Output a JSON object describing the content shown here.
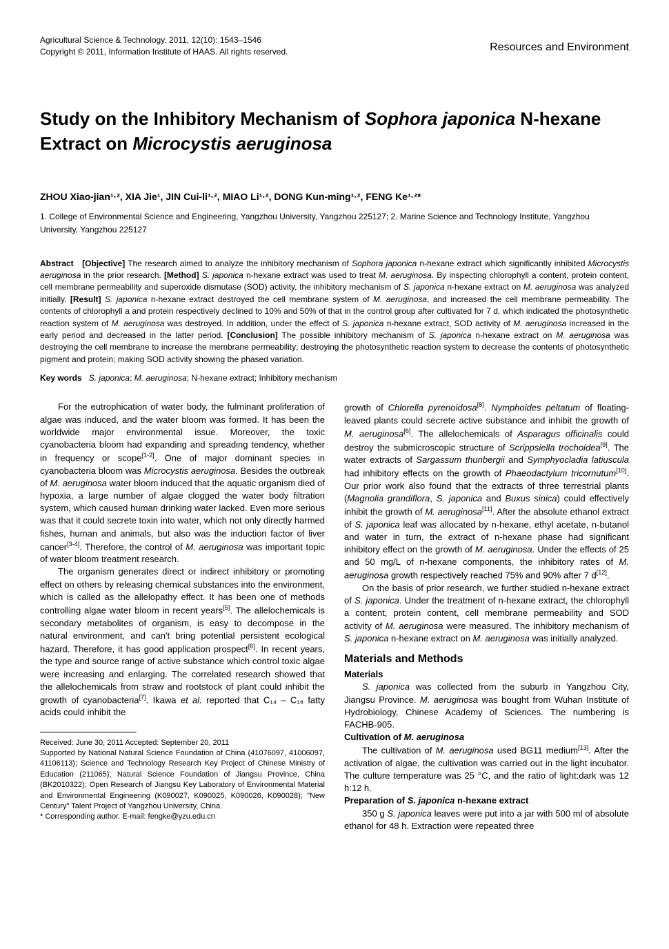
{
  "header": {
    "journal_line1": "Agricultural Science & Technology, 2011, 12(10): 1543–1546",
    "journal_line2": "Copyright © 2011, Information Institute of HAAS. All rights reserved.",
    "section": "Resources and Environment"
  },
  "title": {
    "part1": "Study on the Inhibitory Mechanism of ",
    "italic1": "Sophora japonica",
    "part2": " N-hexane Extract on ",
    "italic2": "Microcystis aeruginosa"
  },
  "authors": "ZHOU Xiao-jian¹·², XIA Jie¹, JIN Cui-li¹·², MIAO Li¹·², DONG Kun-ming¹·², FENG Ke¹·²*",
  "affiliations": "1. College of Environmental Science and Engineering, Yangzhou University, Yangzhou 225127; 2. Marine Science and Technology Institute, Yangzhou University, Yangzhou 225127",
  "abstract": {
    "label": "Abstract",
    "objective_label": "[Objective]",
    "objective": " The research aimed to analyze the inhibitory mechanism of ",
    "obj_i1": "Sophora japonica",
    "obj_2": " n-hexane extract which significantly inhibited ",
    "obj_i2": "Microcystis aeruginosa",
    "obj_3": " in the prior research. ",
    "method_label": "[Method]",
    "method_1": " ",
    "method_i1": "S. japonica",
    "method_2": " n-hexane extract was used to treat ",
    "method_i2": "M. aeruginosa",
    "method_3": ". By inspecting chlorophyll a content, protein content, cell membrane permeability and superoxide dismutase (SOD) activity, the inhibitory mechanism of ",
    "method_i3": "S. japonica",
    "method_4": " n-hexane extract on ",
    "method_i4": "M. aeruginosa",
    "method_5": " was analyzed initially. ",
    "result_label": "[Result]",
    "result_1": " ",
    "result_i1": "S. japonica",
    "result_2": " n-hexane extract destroyed the cell membrane system of ",
    "result_i2": "M. aeruginosa",
    "result_3": ", and increased the cell membrane permeability. The contents of chlorophyll a and protein respectively declined to 10% and 50% of that in the control group after cultivated for 7 d, which indicated the photosynthetic reaction system of ",
    "result_i3": "M. aeruginosa",
    "result_4": " was destroyed. In addition, under the effect of ",
    "result_i4": "S. japonica",
    "result_5": " n-hexane extract, SOD activity of ",
    "result_i5": "M. aeruginosa",
    "result_6": " increased in the early period and decreased in the latter period. ",
    "conclusion_label": "[Conclusion]",
    "conclusion_1": " The possible inhibitory mechanism of ",
    "conclusion_i1": "S. japonica",
    "conclusion_2": " n-hexane extract on ",
    "conclusion_i2": "M. aeruginosa",
    "conclusion_3": " was destroying the cell membrane to increase the membrane permeability; destroying the photosynthetic reaction system to decrease the contents of photosynthetic pigment and protein; making SOD activity showing the phased variation."
  },
  "keywords": {
    "label": "Key words",
    "content": "S. japonica; M. aeruginosa; N-hexane extract; Inhibitory mechanism"
  },
  "body": {
    "left": {
      "p1_1": "For the eutrophication of water body, the fulminant proliferation of algae was induced, and the water bloom was formed. It has been the worldwide major environmental issue. Moreover, the toxic cyanobacteria bloom had expanding and spreading tendency, whether in frequency or scope",
      "p1_sup1": "[1-2]",
      "p1_2": ". One of major dominant species in cyanobacteria bloom was ",
      "p1_i1": "Microcystis aeruginosa",
      "p1_3": ". Besides the outbreak of ",
      "p1_i2": "M. aeruginosa",
      "p1_4": " water bloom induced that the aquatic organism died of hypoxia, a large number of algae clogged the water body filtration system, which caused human drinking water lacked. Even more serious was that it could secrete toxin into water, which not only directly harmed fishes, human and animals, but also was the induction factor of liver cancer",
      "p1_sup2": "[3-4]",
      "p1_5": ". Therefore, the control of ",
      "p1_i3": "M. aeruginosa",
      "p1_6": " was important topic of water bloom treatment research.",
      "p2_1": "The organism generates direct or indirect inhibitory or promoting effect on others by releasing chemical substances into the environment, which is called as the allelopathy effect. It has been one of methods controlling algae water bloom in recent years",
      "p2_sup1": "[5]",
      "p2_2": ". The allelochemicals is secondary metabolites of organism, is easy to decompose in the natural environment, and can't bring potential persistent ecological hazard. Therefore, it has good application prospect",
      "p2_sup2": "[6]",
      "p2_3": ". In recent years, the type and source range of active substance which control toxic algae were increasing and enlarging. The correlated research showed that the allelochemicals from straw and rootstock of plant could inhibit the growth of cyanobacteria",
      "p2_sup3": "[7]",
      "p2_4": ". Ikawa ",
      "p2_i1": "et al.",
      "p2_5": " reported that C₁₄ – C₁₈ fatty acids could inhibit the"
    },
    "right": {
      "p1_1": "growth of ",
      "p1_i1": "Chlorella pyrenoidosa",
      "p1_sup1": "[8]",
      "p1_2": ". ",
      "p1_i2": "Nymphoides peltatum",
      "p1_3": " of floating-leaved plants could secrete active substance and inhibit the growth of ",
      "p1_i3": "M. aeruginosa",
      "p1_sup2": "[6]",
      "p1_4": ". The allelochemicals of ",
      "p1_i4": "Asparagus officinalis",
      "p1_5": " could destroy the submicroscopic structure of ",
      "p1_i5": "Scrippsiella trochoidea",
      "p1_sup3": "[9]",
      "p1_6": ". The water extracts of ",
      "p1_i6": "Sargassum thunbergii",
      "p1_7": " and ",
      "p1_i7": "Symphyocladia latiuscula",
      "p1_8": " had inhibitory effects on the growth of ",
      "p1_i8": "Phaeodactylum tricornutum",
      "p1_sup4": "[10]",
      "p1_9": ". Our prior work also found that the extracts of three terrestrial plants (",
      "p1_i9": "Magnolia grandiflora",
      "p1_10": ", ",
      "p1_i10": "S. japonica",
      "p1_11": " and ",
      "p1_i11": "Buxus sinica",
      "p1_12": ") could effectively inhibit the growth of ",
      "p1_i12": "M. aeruginosa",
      "p1_sup5": "[11]",
      "p1_13": ". After the absolute ethanol extract of ",
      "p1_i13": "S. japonica",
      "p1_14": " leaf was allocated by n-hexane, ethyl acetate, n-butanol and water in turn, the extract of n-hexane phase had significant inhibitory effect on the growth of ",
      "p1_i14": "M. aeruginosa",
      "p1_15": ". Under the effects of 25 and 50 mg/L of n-hexane components, the inhibitory rates of ",
      "p1_i15": "M. aeruginosa",
      "p1_16": " growth respectively reached 75% and 90% after 7 d",
      "p1_sup6": "[12]",
      "p1_17": ".",
      "p2_1": "On the basis of prior research, we further studied n-hexane extract of ",
      "p2_i1": "S. japonica",
      "p2_2": ". Under the treatment of n-hexane extract, the chlorophyll a content, protein content, cell membrane permeability and SOD activity of ",
      "p2_i2": "M. aeruginosa",
      "p2_3": " were measured. The inhibitory mechanism of ",
      "p2_i3": "S. japonica",
      "p2_4": " n-hexane extract on ",
      "p2_i4": "M. aeruginosa",
      "p2_5": " was initially analyzed."
    },
    "methods_heading": "Materials and Methods",
    "materials_heading": "Materials",
    "materials_p_i1": "S. japonica",
    "materials_p_1": " was collected from the suburb in Yangzhou City, Jiangsu Province. ",
    "materials_p_i2": "M. aeruginosa",
    "materials_p_2": " was bought from Wuhan Institute of Hydrobiology, Chinese Academy of Sciences. The numbering is FACHB-905.",
    "cultivation_heading_1": "Cultivation of ",
    "cultivation_heading_i": "M. aeruginosa",
    "cultivation_p_1": "The cultivation of ",
    "cultivation_p_i1": "M. aeruginosa",
    "cultivation_p_2": " used BG11 medium",
    "cultivation_p_sup": "[13]",
    "cultivation_p_3": ". After the activation of algae, the cultivation was carried out in the light incubator. The culture temperature was 25 °C, and the ratio of light:dark was 12 h:12 h.",
    "prep_heading_1": "Preparation of ",
    "prep_heading_i": "S. japonica",
    "prep_heading_2": " n-hexane extract",
    "prep_p_1": "350 g ",
    "prep_p_i1": "S. japonica",
    "prep_p_2": " leaves were put into a jar with 500 ml of absolute ethanol for 48 h. Extraction were repeated three"
  },
  "footnote": {
    "received": "Received: June 30, 2011        Accepted: September 20, 2011",
    "funding": "Supported by National Natural Science Foundation of China (41076097, 41006097, 41106113); Science and Technology Research Key Project of Chinese Ministry of Education (211065); Natural Science Foundation of Jiangsu Province, China (BK2010322); Open Research of Jiangsu Key Laboratory of Environmental Material and Environmental Engineering (K090027, K090025, K090026, K090028); \"New Century\" Talent Project of Yangzhou University, China.",
    "corresponding": "* Corresponding author. E-mail: fengke@yzu.edu.cn"
  }
}
